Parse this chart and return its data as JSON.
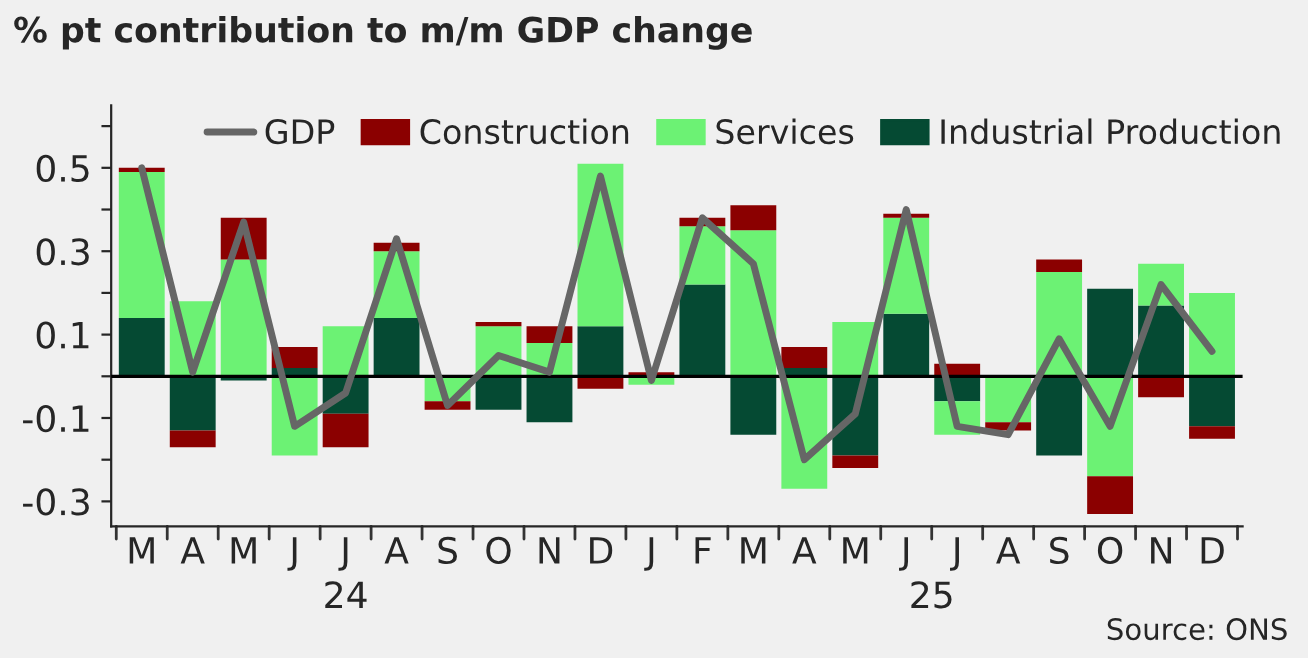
{
  "chart_data": {
    "type": "bar",
    "stacked": true,
    "title": "% pt contribution to m/m GDP change",
    "categories": [
      "M",
      "A",
      "M",
      "J",
      "J",
      "A",
      "S",
      "O",
      "N",
      "D",
      "J",
      "F",
      "M",
      "A",
      "M",
      "J",
      "J",
      "A",
      "S",
      "O",
      "N",
      "D"
    ],
    "series": [
      {
        "name": "Industrial Production",
        "color": "#054a33",
        "values": [
          0.14,
          -0.13,
          -0.01,
          0.02,
          -0.09,
          0.14,
          0,
          -0.08,
          -0.11,
          0.12,
          0,
          0.22,
          -0.14,
          0.02,
          -0.19,
          0.15,
          -0.06,
          0,
          -0.19,
          0.21,
          0.17,
          -0.12
        ]
      },
      {
        "name": "Services",
        "color": "#6cf274",
        "values": [
          0.35,
          0.18,
          0.28,
          -0.19,
          0.12,
          0.16,
          -0.06,
          0.12,
          0.08,
          0.39,
          -0.02,
          0.14,
          0.35,
          -0.27,
          0.13,
          0.23,
          -0.08,
          -0.11,
          0.25,
          -0.24,
          0.1,
          0.2
        ]
      },
      {
        "name": "Construction",
        "color": "#8b0000",
        "values": [
          0.01,
          -0.04,
          0.1,
          0.05,
          -0.08,
          0.02,
          -0.02,
          0.01,
          0.04,
          -0.03,
          0.01,
          0.02,
          0.06,
          0.05,
          -0.03,
          0.01,
          0.03,
          -0.02,
          0.03,
          -0.09,
          -0.05,
          -0.03
        ]
      },
      {
        "name": "GDP",
        "type": "line",
        "color": "#666666",
        "values": [
          0.5,
          0.01,
          0.37,
          -0.12,
          -0.04,
          0.33,
          -0.07,
          0.05,
          0.01,
          0.48,
          -0.01,
          0.38,
          0.27,
          -0.2,
          -0.09,
          0.4,
          -0.12,
          -0.14,
          0.09,
          -0.12,
          0.22,
          0.06
        ]
      }
    ],
    "ylim": [
      -0.36,
      0.65
    ],
    "yticks": [
      -0.3,
      {
        "value": -0.2,
        "label": null
      },
      -0.1,
      {
        "value": 0,
        "label": null
      },
      0.1,
      {
        "value": 0.2,
        "label": null
      },
      0.3,
      {
        "value": 0.4,
        "label": null
      },
      0.5,
      {
        "value": 0.6,
        "label": null
      }
    ],
    "ref_lines": [
      {
        "axis": "y",
        "value": 0,
        "color": "#000000"
      }
    ],
    "legend": "top",
    "grid": false,
    "annotations": [
      "24",
      "25",
      "Source: ONS"
    ]
  }
}
